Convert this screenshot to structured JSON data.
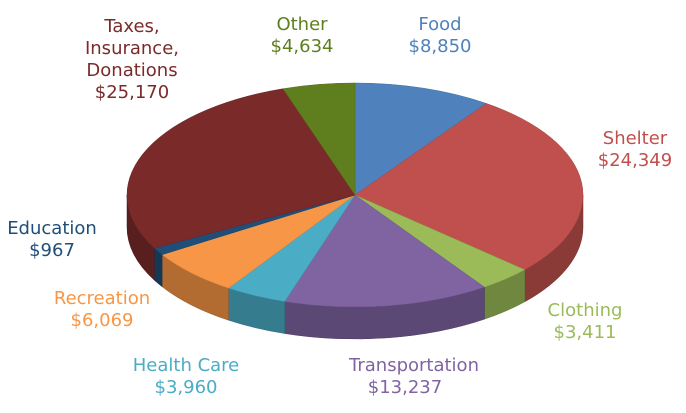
{
  "chart_data": {
    "type": "pie",
    "categories": [
      "Food",
      "Shelter",
      "Clothing",
      "Transportation",
      "Health Care",
      "Recreation",
      "Education",
      "Taxes, Insurance, Donations",
      "Other"
    ],
    "values": [
      8850,
      24349,
      3411,
      13237,
      3960,
      6069,
      967,
      25170,
      4634
    ],
    "value_labels": [
      "$8,850",
      "$24,349",
      "$3,411",
      "$13,237",
      "$3,960",
      "$6,069",
      "$967",
      "$25,170",
      "$4,634"
    ],
    "colors": [
      "#4f81bd",
      "#c0504d",
      "#9bbb59",
      "#8064a2",
      "#4bacc6",
      "#f79646",
      "#1f4e79",
      "#7b2a2a",
      "#5f7f1f"
    ]
  }
}
